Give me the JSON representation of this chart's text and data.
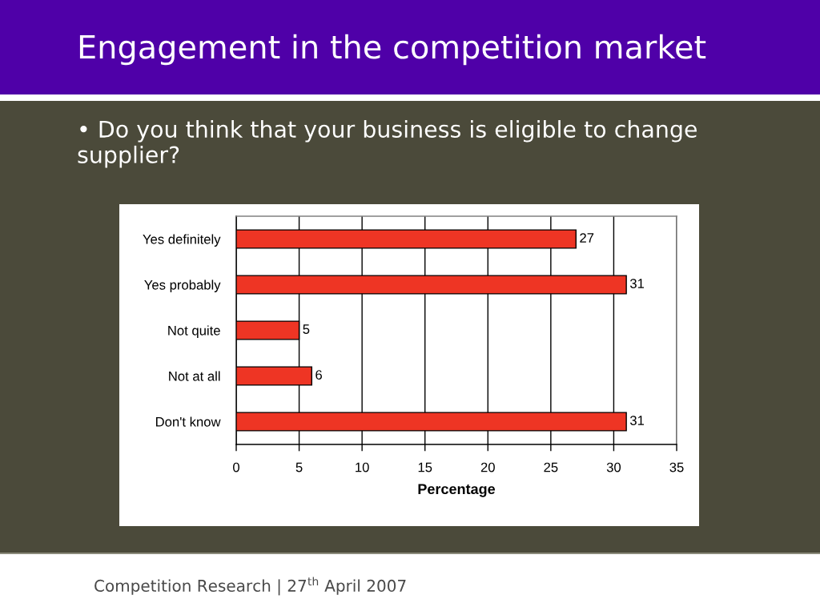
{
  "chart_data": {
    "type": "bar",
    "orientation": "horizontal",
    "title": "Engagement in the competition market",
    "subtitle": "• Do you think that your business is eligible to change supplier?",
    "xlabel": "Percentage",
    "categories": [
      "Yes definitely",
      "Yes probably",
      "Not quite",
      "Not at all",
      "Don't know"
    ],
    "values": [
      27,
      31,
      5,
      6,
      31
    ],
    "color": "#ee3524",
    "xlim": [
      0,
      35
    ],
    "xticks": [
      0,
      5,
      10,
      15,
      20,
      25,
      30,
      35
    ],
    "grid": "x",
    "data_labels": true,
    "annotations": [
      "Competition Research | 27$^{th}$ April 2007"
    ]
  }
}
